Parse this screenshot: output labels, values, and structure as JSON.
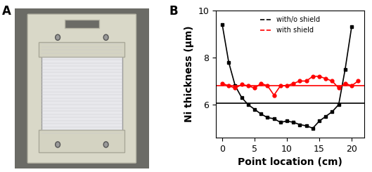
{
  "panel_labels": [
    "A",
    "B"
  ],
  "chart_data": {
    "type": "line",
    "xlabel": "Point location (cm)",
    "ylabel": "Ni thickness (μm)",
    "xlim": [
      -1,
      22
    ],
    "xticks": [
      0,
      5,
      10,
      15,
      20
    ],
    "ylim": [
      4.6,
      10
    ],
    "yticks": [
      6,
      8,
      10
    ],
    "grid": false,
    "legend": "upper center",
    "series": [
      {
        "name": "with/o shield",
        "color": "#000000",
        "marker": "s",
        "line_style": "solid",
        "x": [
          0,
          1,
          2,
          3,
          4,
          5,
          6,
          7,
          8,
          9,
          10,
          11,
          12,
          13,
          14,
          15,
          16,
          17,
          18,
          19,
          20
        ],
        "values": [
          9.4,
          7.8,
          6.8,
          6.3,
          6.0,
          5.8,
          5.6,
          5.45,
          5.4,
          5.25,
          5.3,
          5.25,
          5.15,
          5.1,
          5.0,
          5.3,
          5.5,
          5.7,
          6.0,
          7.5,
          9.3
        ]
      },
      {
        "name": "with shield",
        "color": "#ff0000",
        "marker": "o",
        "line_style": "solid",
        "x": [
          0,
          1,
          2,
          3,
          4,
          5,
          6,
          7,
          8,
          9,
          10,
          11,
          12,
          13,
          14,
          15,
          16,
          17,
          18,
          19,
          20,
          21
        ],
        "values": [
          6.9,
          6.8,
          6.7,
          6.85,
          6.8,
          6.7,
          6.9,
          6.8,
          6.4,
          6.8,
          6.8,
          6.9,
          7.0,
          7.0,
          7.2,
          7.2,
          7.1,
          7.0,
          6.7,
          6.9,
          6.8,
          7.0
        ]
      }
    ],
    "average_lines": [
      {
        "y": 6.05,
        "color": "#000000"
      },
      {
        "y": 6.8,
        "color": "#ff0000"
      }
    ]
  }
}
